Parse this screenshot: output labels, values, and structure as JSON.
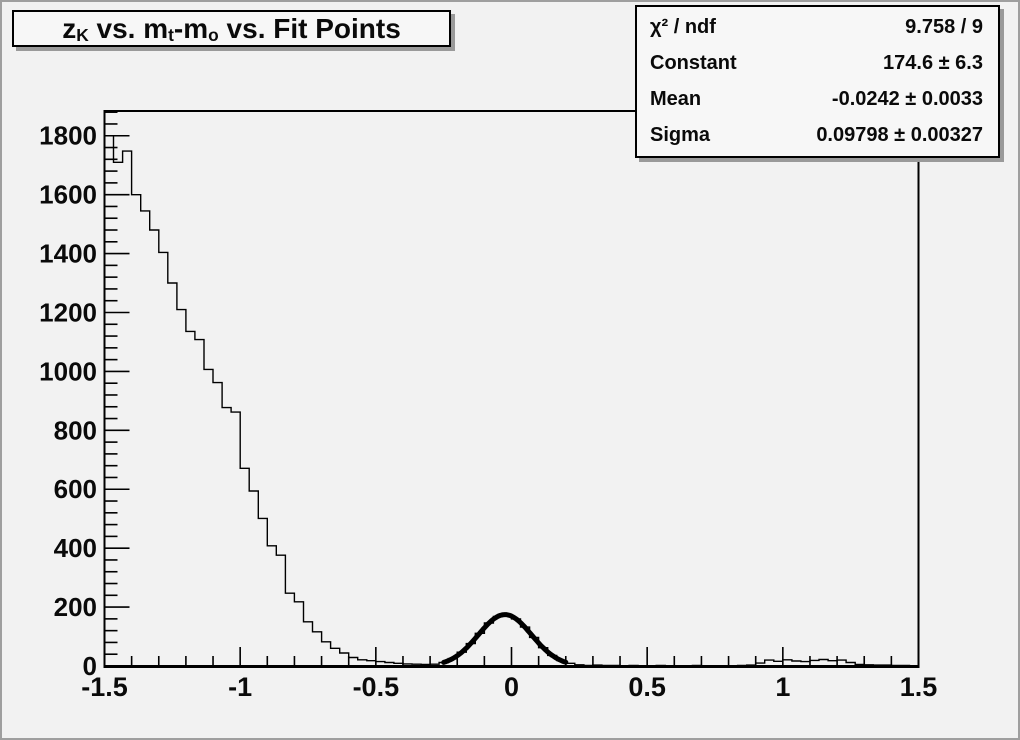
{
  "title": {
    "t1": "z",
    "s1": "K",
    "t2": " vs. m",
    "s2": "t",
    "t3": "-m",
    "s3": "o",
    "t4": " vs. Fit Points"
  },
  "stats": {
    "rows": [
      {
        "label": "χ² / ndf",
        "value": "9.758 / 9"
      },
      {
        "label": "Constant",
        "value": "174.6 ± 6.3"
      },
      {
        "label": "Mean",
        "value": "-0.0242 ± 0.0033"
      },
      {
        "label": "Sigma",
        "value": "0.09798 ± 0.00327"
      }
    ]
  },
  "colors": {
    "canvas_bg": "#f2f2f2",
    "box_bg": "#f7f7f7",
    "box_border": "#000000",
    "box_shadow": "#9a9a9a",
    "outer_border": "#9f9f9f",
    "line": "#000000",
    "text": "#0a0a0a"
  },
  "chart_data": {
    "type": "bar",
    "title": "z_K vs. m_t-m_o vs. Fit Points",
    "xlabel": "",
    "ylabel": "",
    "grid": false,
    "legend_position": "none",
    "xlim": [
      -1.5,
      1.5
    ],
    "ylim": [
      0,
      1884
    ],
    "x_major_step": 0.5,
    "x_minor_step": 0.1,
    "y_major_step": 200,
    "y_minor_step": 40,
    "x_tick_labels": [
      "-1.5",
      "-1",
      "-0.5",
      "0",
      "0.5",
      "1",
      "1.5"
    ],
    "y_tick_labels": [
      "0",
      "200",
      "400",
      "600",
      "800",
      "1000",
      "1200",
      "1400",
      "1600",
      "1800"
    ],
    "bin_start": -1.5,
    "bin_width": 0.0333333,
    "n_bins": 90,
    "values": [
      1800,
      1710,
      1748,
      1600,
      1545,
      1480,
      1404,
      1300,
      1210,
      1136,
      1108,
      1007,
      962,
      877,
      862,
      671,
      594,
      501,
      408,
      376,
      247,
      218,
      150,
      116,
      82,
      60,
      44,
      29,
      21,
      18,
      15,
      12,
      9,
      7,
      6,
      5,
      6,
      12,
      25,
      47,
      76,
      111,
      146,
      168,
      175,
      160,
      132,
      97,
      62,
      36,
      19,
      9,
      4,
      2,
      3,
      2,
      2,
      1,
      2,
      1,
      1,
      2,
      1,
      1,
      1,
      2,
      1,
      1,
      1,
      1,
      2,
      3,
      10,
      20,
      16,
      21,
      17,
      15,
      19,
      22,
      18,
      20,
      12,
      5,
      4,
      3,
      3,
      2,
      2,
      1
    ],
    "fit": {
      "type": "gaussian",
      "constant": 174.6,
      "mean": -0.0242,
      "sigma": 0.09798,
      "chi2": 9.758,
      "ndf": 9,
      "draw_range": [
        -0.25,
        0.2
      ]
    }
  }
}
